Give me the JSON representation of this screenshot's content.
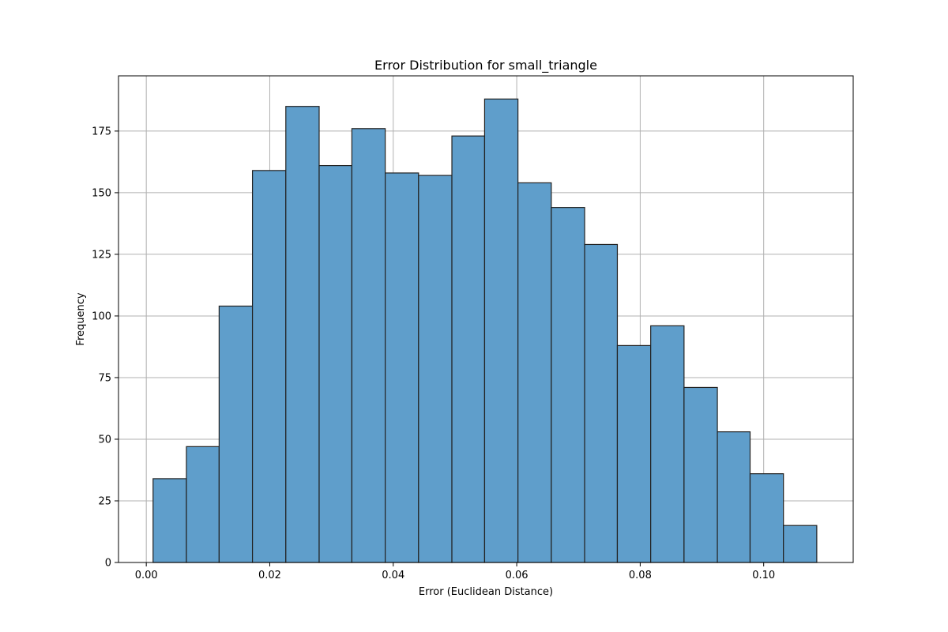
{
  "chart_data": {
    "type": "bar",
    "title": "Error Distribution for small_triangle",
    "xlabel": "Error (Euclidean Distance)",
    "ylabel": "Frequency",
    "xlim": [
      -0.0045,
      0.1145
    ],
    "ylim": [
      0,
      197.4
    ],
    "grid": true,
    "bar_color": "#5f9ecb",
    "edge_color": "#222222",
    "bin_edges": [
      0.0011,
      0.0065,
      0.0118,
      0.0172,
      0.0226,
      0.028,
      0.0333,
      0.0387,
      0.0441,
      0.0495,
      0.0548,
      0.0602,
      0.0656,
      0.071,
      0.0763,
      0.0817,
      0.0871,
      0.0925,
      0.0978,
      0.1032,
      0.1086
    ],
    "values": [
      34,
      47,
      104,
      159,
      185,
      161,
      176,
      158,
      157,
      173,
      188,
      154,
      144,
      129,
      88,
      96,
      71,
      53,
      36,
      15
    ],
    "x_ticks": [
      0.0,
      0.02,
      0.04,
      0.06,
      0.08,
      0.1
    ],
    "x_tick_labels": [
      "0.00",
      "0.02",
      "0.04",
      "0.06",
      "0.08",
      "0.10"
    ],
    "y_ticks": [
      0,
      25,
      50,
      75,
      100,
      125,
      150,
      175
    ],
    "y_tick_labels": [
      "0",
      "25",
      "50",
      "75",
      "100",
      "125",
      "150",
      "175"
    ]
  }
}
